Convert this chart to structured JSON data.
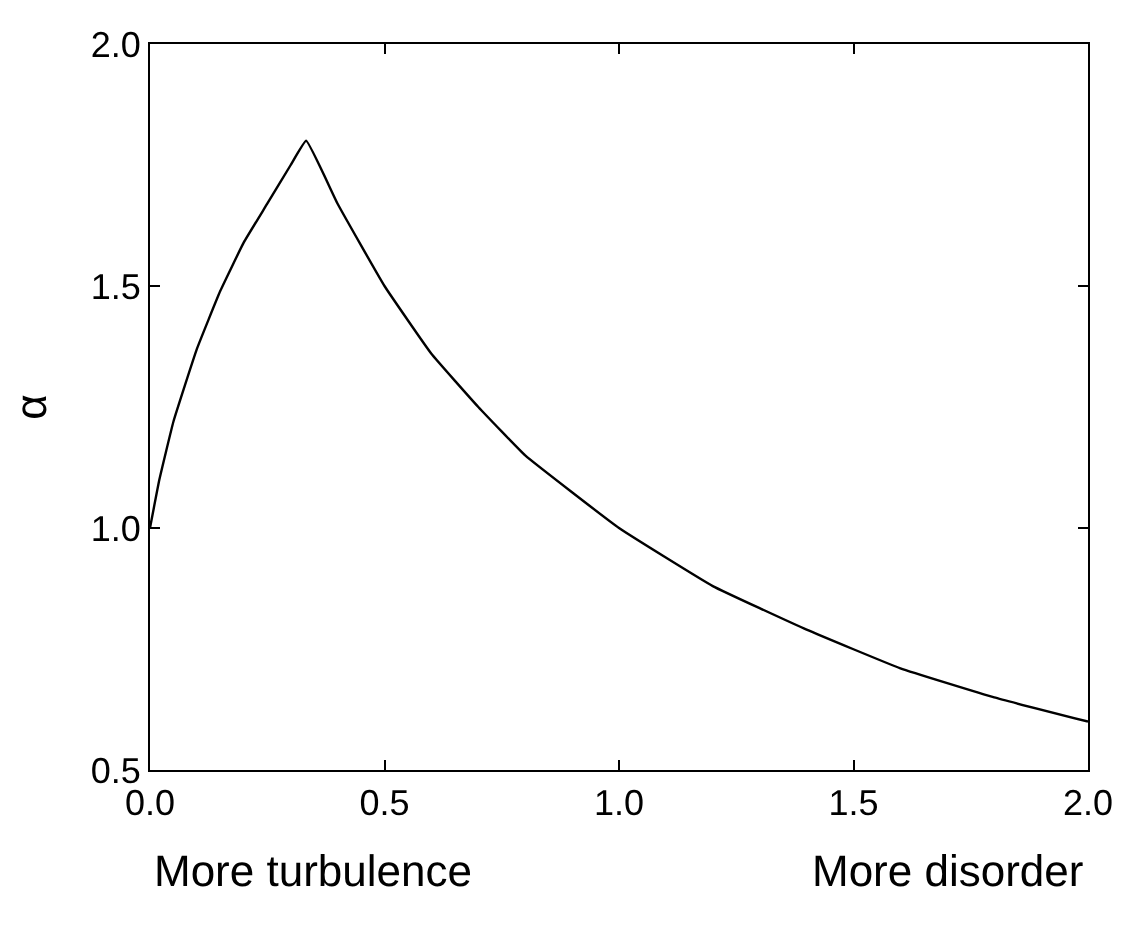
{
  "chart_data": {
    "type": "line",
    "ylabel": "α",
    "x": [
      0,
      0.02,
      0.05,
      0.1,
      0.15,
      0.2,
      0.25,
      0.3,
      0.333,
      0.4,
      0.5,
      0.6,
      0.7,
      0.8,
      1.0,
      1.2,
      1.4,
      1.6,
      1.8,
      2.0
    ],
    "series": [
      {
        "color": "#000000",
        "values": [
          1.0,
          1.1,
          1.22,
          1.37,
          1.49,
          1.59,
          1.67,
          1.75,
          1.8,
          1.67,
          1.5,
          1.36,
          1.25,
          1.15,
          1.0,
          0.88,
          0.79,
          0.71,
          0.65,
          0.6
        ]
      }
    ],
    "xlim": [
      0,
      2
    ],
    "ylim": [
      0.5,
      2
    ],
    "xticks": [
      {
        "value": 0,
        "label": "0.0"
      },
      0.5,
      {
        "value": 1,
        "label": "1.0"
      },
      1.5,
      {
        "value": 2,
        "label": "2.0"
      }
    ],
    "yticks": [
      0.5,
      {
        "value": 1,
        "label": "1.0"
      },
      1.5,
      {
        "value": 2,
        "label": "2.0"
      }
    ],
    "annotations": [
      "More turbulence",
      "More disorder"
    ],
    "marker": "none",
    "line_style": "solid"
  }
}
